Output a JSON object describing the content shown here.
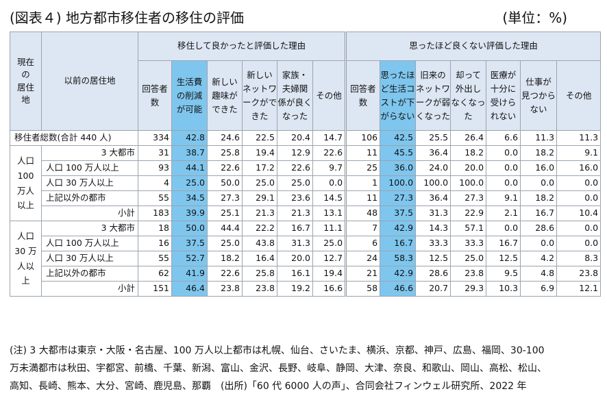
{
  "title": "(図表４) 地方都市移住者の移住の評価",
  "unit": "(単位：%)",
  "headers": {
    "current_residence": "現在\nの\n居住\n地",
    "previous_residence": "以前の居住地",
    "good_group": "移住して良かったと評価した理由",
    "bad_group": "思ったほど良くない評価した理由",
    "good_cols": [
      "回答者\n数",
      "生活費\nの削減\nが可能",
      "新しい\n趣味が\nできた",
      "新しい\nネットワ\nークがで\nきた",
      "家族・\n夫婦関\n係が良く\nなった",
      "その他"
    ],
    "bad_cols": [
      "回答者\n数",
      "思ったほ\nど生活コ\nストが下\nがらない",
      "旧来の\nネットワ\nークが弱\nくなった",
      "却って\n外出し\nなくなっ\nた",
      "医療が\n十分に\n受けら\nれない",
      "仕事が\n見つから\nない",
      "その他"
    ]
  },
  "total_row": {
    "label": "移住者総数(合計 440 人)",
    "good": [
      "334",
      "42.8",
      "24.6",
      "22.5",
      "20.4",
      "14.7"
    ],
    "bad": [
      "106",
      "42.5",
      "25.5",
      "26.4",
      "6.6",
      "11.3",
      "11.3"
    ]
  },
  "groups": [
    {
      "label": "人口\n100\n万人\n以上",
      "rows": [
        {
          "label": "3 大都市",
          "align": "right",
          "good": [
            "31",
            "38.7",
            "25.8",
            "19.4",
            "12.9",
            "22.6"
          ],
          "bad": [
            "11",
            "45.5",
            "36.4",
            "18.2",
            "0.0",
            "18.2",
            "9.1"
          ]
        },
        {
          "label": "人口 100 万人以上",
          "align": "left",
          "good": [
            "93",
            "44.1",
            "22.6",
            "17.2",
            "22.6",
            "9.7"
          ],
          "bad": [
            "25",
            "36.0",
            "24.0",
            "20.0",
            "0.0",
            "16.0",
            "16.0"
          ]
        },
        {
          "label": "人口 30 万人以上",
          "align": "left",
          "good": [
            "4",
            "25.0",
            "50.0",
            "25.0",
            "25.0",
            "0.0"
          ],
          "bad": [
            "1",
            "100.0",
            "100.0",
            "100.0",
            "0.0",
            "0.0",
            "0.0"
          ]
        },
        {
          "label": "上記以外の都市",
          "align": "left",
          "good": [
            "55",
            "34.5",
            "27.3",
            "29.1",
            "23.6",
            "14.5"
          ],
          "bad": [
            "11",
            "27.3",
            "36.4",
            "27.3",
            "9.1",
            "18.2",
            "0.0"
          ]
        },
        {
          "label": "小計",
          "align": "right",
          "good": [
            "183",
            "39.9",
            "25.1",
            "21.3",
            "21.3",
            "13.1"
          ],
          "bad": [
            "48",
            "37.5",
            "31.3",
            "22.9",
            "2.1",
            "16.7",
            "10.4"
          ]
        }
      ]
    },
    {
      "label": "人口\n30 万\n人以\n上",
      "rows": [
        {
          "label": "3 大都市",
          "align": "right",
          "good": [
            "18",
            "50.0",
            "44.4",
            "22.2",
            "16.7",
            "11.1"
          ],
          "bad": [
            "7",
            "42.9",
            "14.3",
            "57.1",
            "0.0",
            "28.6",
            "0.0"
          ]
        },
        {
          "label": "人口 100 万人以上",
          "align": "left",
          "good": [
            "16",
            "37.5",
            "25.0",
            "43.8",
            "31.3",
            "25.0"
          ],
          "bad": [
            "6",
            "16.7",
            "33.3",
            "33.3",
            "16.7",
            "0.0",
            "0.0"
          ]
        },
        {
          "label": "人口 30 万人以上",
          "align": "left",
          "good": [
            "55",
            "52.7",
            "18.2",
            "16.4",
            "20.0",
            "12.7"
          ],
          "bad": [
            "24",
            "58.3",
            "12.5",
            "25.0",
            "12.5",
            "4.2",
            "8.3"
          ]
        },
        {
          "label": "上記以外の都市",
          "align": "left",
          "good": [
            "62",
            "41.9",
            "22.6",
            "25.8",
            "16.1",
            "19.4"
          ],
          "bad": [
            "21",
            "42.9",
            "28.6",
            "23.8",
            "9.5",
            "4.8",
            "23.8"
          ]
        },
        {
          "label": "小計",
          "align": "right",
          "good": [
            "151",
            "46.4",
            "23.8",
            "23.8",
            "19.2",
            "16.6"
          ],
          "bad": [
            "58",
            "46.6",
            "20.7",
            "29.3",
            "10.3",
            "6.9",
            "12.1"
          ]
        }
      ]
    }
  ],
  "highlight_color": "#7fc6ee",
  "header_color": "#dde6f3",
  "note": "(注) 3 大都市は東京・大阪・名古屋、100 万人以上都市は札幌、仙台、さいたま、横浜、京都、神戸、広島、福岡、30-100\n万未満都市は秋田、宇都宮、前橋、千葉、新潟、富山、金沢、長野、岐阜、静岡、大津、奈良、和歌山、岡山、高松、松山、\n高知、長崎、熊本、大分、宮崎、鹿児島、那覇　(出所)「60 代 6000 人の声」、合同会社フィンウェル研究所、2022 年"
}
